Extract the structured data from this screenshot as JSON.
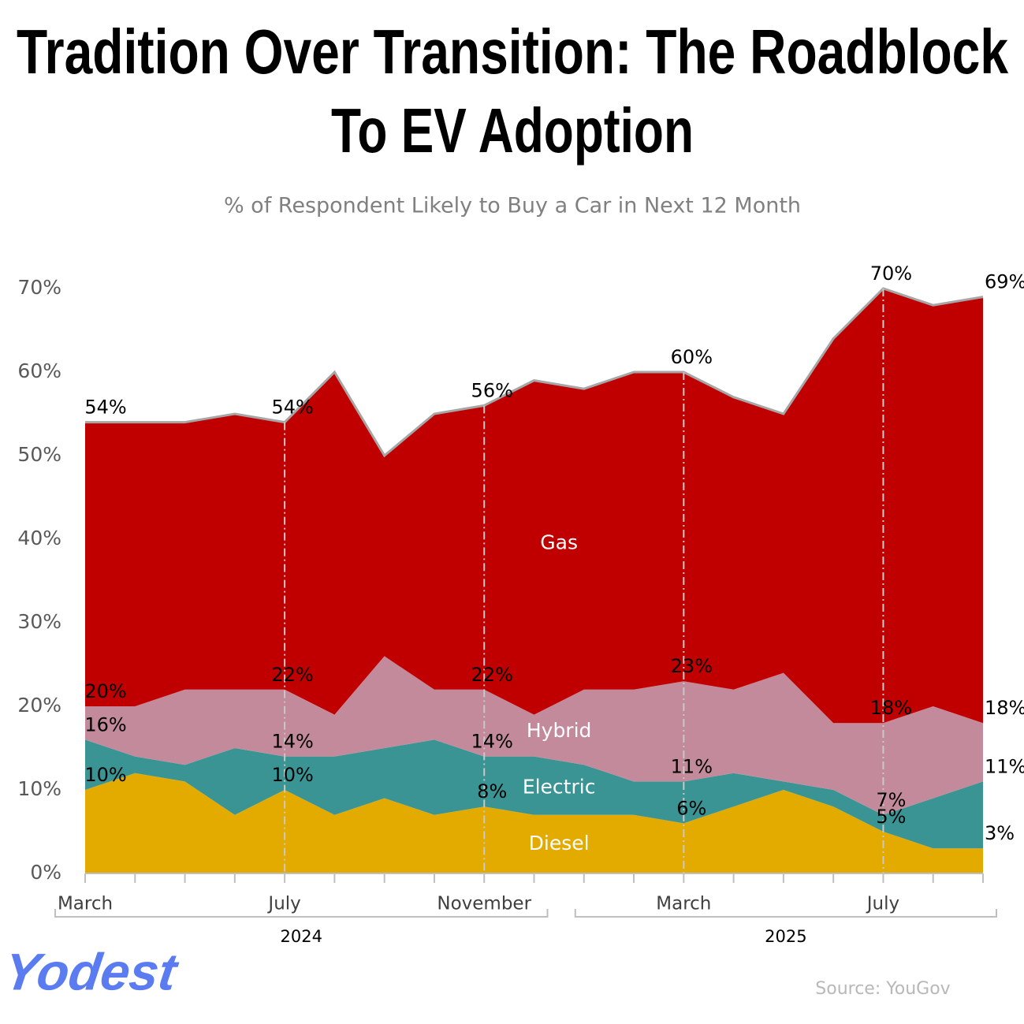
{
  "chart_data": {
    "type": "stacked_area",
    "title": [
      "Tradition Over Transition: The Roadblock",
      "To EV Adoption"
    ],
    "subtitle": "% of Respondent Likely to Buy a Car in Next 12 Month",
    "source": "Source: YouGov",
    "brand": "Yodest",
    "categories": [
      "March",
      null,
      null,
      null,
      "July",
      null,
      null,
      null,
      "November",
      null,
      null,
      null,
      "March",
      null,
      null,
      null,
      "July",
      null,
      null
    ],
    "x_groups": [
      {
        "label": "2024",
        "count": 10
      },
      {
        "label": "2025",
        "count": 9
      }
    ],
    "series": [
      {
        "name": "Diesel",
        "color": "#e3aa00",
        "values": [
          10,
          12,
          11,
          7,
          10,
          7,
          9,
          7,
          8,
          7,
          7,
          7,
          6,
          8,
          10,
          8,
          5,
          3,
          3
        ]
      },
      {
        "name": "Electric",
        "color": "#3a9494",
        "values": [
          6,
          2,
          2,
          8,
          4,
          7,
          6,
          9,
          6,
          7,
          6,
          4,
          5,
          4,
          1,
          2,
          2,
          6,
          8
        ]
      },
      {
        "name": "Hybrid",
        "color": "#c28a9a",
        "values": [
          4,
          6,
          9,
          7,
          8,
          5,
          11,
          6,
          8,
          5,
          9,
          11,
          12,
          10,
          13,
          8,
          11,
          11,
          7
        ]
      },
      {
        "name": "Gas",
        "color": "#c00000",
        "values": [
          34,
          34,
          32,
          33,
          32,
          41,
          24,
          33,
          34,
          40,
          36,
          38,
          37,
          35,
          31,
          46,
          52,
          48,
          51
        ]
      }
    ],
    "annotations": [
      {
        "text": "54%",
        "value": 54,
        "at": 0
      },
      {
        "text": "20%",
        "value": 20,
        "at": 0
      },
      {
        "text": "16%",
        "value": 16,
        "at": 0
      },
      {
        "text": "10%",
        "value": 10,
        "at": 0
      },
      {
        "text": "54%",
        "value": 54,
        "at": 4
      },
      {
        "text": "22%",
        "value": 22,
        "at": 4
      },
      {
        "text": "14%",
        "value": 14,
        "at": 4
      },
      {
        "text": "10%",
        "value": 10,
        "at": 4
      },
      {
        "text": "56%",
        "value": 56,
        "at": 8
      },
      {
        "text": "22%",
        "value": 22,
        "at": 8
      },
      {
        "text": "14%",
        "value": 14,
        "at": 8
      },
      {
        "text": "8%",
        "value": 8,
        "at": 8
      },
      {
        "text": "60%",
        "value": 60,
        "at": 12
      },
      {
        "text": "23%",
        "value": 23,
        "at": 12
      },
      {
        "text": "11%",
        "value": 11,
        "at": 12
      },
      {
        "text": "6%",
        "value": 6,
        "at": 12
      },
      {
        "text": "70%",
        "value": 70,
        "at": 16
      },
      {
        "text": "18%",
        "value": 18,
        "at": 16
      },
      {
        "text": "7%",
        "value": 7,
        "at": 16
      },
      {
        "text": "5%",
        "value": 5,
        "at": 16
      },
      {
        "text": "69%",
        "value": 69,
        "at": 18
      },
      {
        "text": "18%",
        "value": 18,
        "at": 18
      },
      {
        "text": "11%",
        "value": 11,
        "at": 18
      },
      {
        "text": "3%",
        "value": 3,
        "at": 18
      }
    ],
    "ylim": [
      0,
      70
    ],
    "yticks": [
      {
        "value": 0,
        "label": "0%"
      },
      {
        "value": 10,
        "label": "10%"
      },
      {
        "value": 20,
        "label": "20%"
      },
      {
        "value": 30,
        "label": "30%"
      },
      {
        "value": 40,
        "label": "40%"
      },
      {
        "value": 50,
        "label": "50%"
      },
      {
        "value": 60,
        "label": "60%"
      },
      {
        "value": 70,
        "label": "70%"
      }
    ],
    "grid": false
  }
}
